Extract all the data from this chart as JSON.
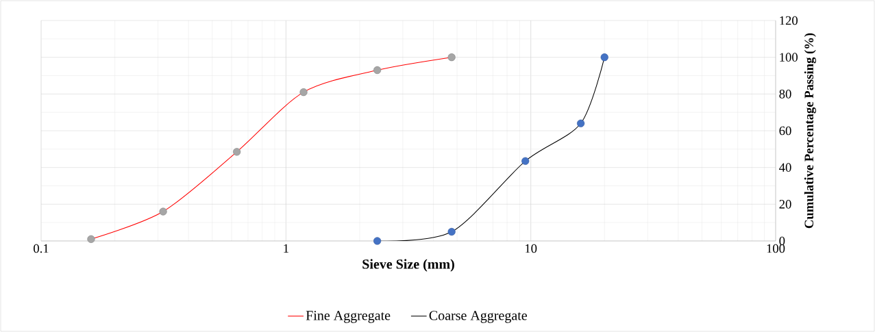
{
  "chart_data": {
    "type": "line",
    "xlabel": "Sieve Size (mm)",
    "ylabel": "Cumulative Percentage Passing (%)",
    "log": "x",
    "xlim": [
      0.1,
      100
    ],
    "xticks": [
      0.1,
      1,
      10,
      100
    ],
    "ylim": [
      0,
      120
    ],
    "yticks": [
      0,
      20,
      40,
      60,
      80,
      100,
      120
    ],
    "grid": true,
    "legend": "bottom",
    "marker": "circle",
    "series": [
      {
        "name": "Fine Aggregate",
        "color": "#ff0000",
        "colors": [
          "#a6a6a6",
          "#a6a6a6",
          "#a6a6a6",
          "#a6a6a6",
          "#a6a6a6",
          "#a6a6a6"
        ],
        "x": [
          0.16,
          0.315,
          0.63,
          1.18,
          2.36,
          4.75
        ],
        "values": [
          1,
          16,
          48.5,
          81,
          93,
          100
        ]
      },
      {
        "name": "Coarse Aggregate",
        "color": "#000000",
        "colors": [
          "#4472c4",
          "#4472c4",
          "#4472c4",
          "#4472c4",
          "#4472c4"
        ],
        "x": [
          2.36,
          4.75,
          9.5,
          16,
          20
        ],
        "values": [
          0,
          5,
          43.5,
          64,
          100
        ]
      }
    ]
  }
}
